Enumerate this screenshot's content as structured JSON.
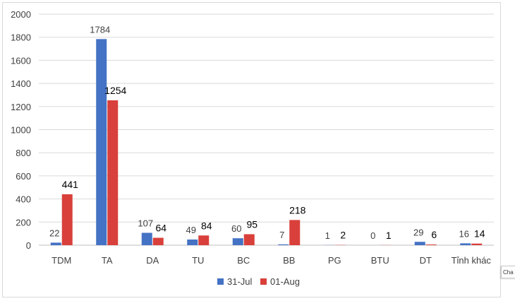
{
  "chart_data": {
    "type": "bar",
    "categories": [
      "TDM",
      "TA",
      "DA",
      "TU",
      "BC",
      "BB",
      "PG",
      "BTU",
      "DT",
      "Tỉnh khác"
    ],
    "series": [
      {
        "name": "31-Jul",
        "color": "#4472c4",
        "values": [
          22,
          1784,
          107,
          49,
          60,
          7,
          1,
          0,
          29,
          16
        ]
      },
      {
        "name": "01-Aug",
        "color": "#d9403b",
        "values": [
          441,
          1254,
          64,
          84,
          95,
          218,
          2,
          1,
          6,
          14
        ]
      }
    ],
    "title": "",
    "xlabel": "",
    "ylabel": "",
    "ylim": [
      0,
      2000
    ],
    "yticks": [
      0,
      200,
      400,
      600,
      800,
      1000,
      1200,
      1400,
      1600,
      1800,
      2000
    ],
    "grid": true,
    "legend": "bottom"
  },
  "tooltip_text": "Cha"
}
